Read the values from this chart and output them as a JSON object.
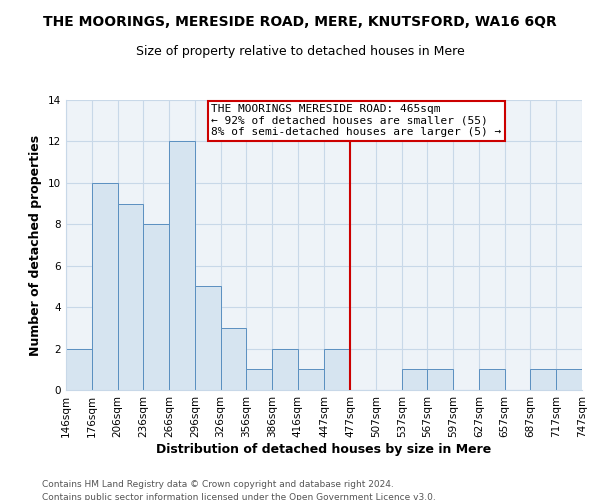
{
  "title": "THE MOORINGS, MERESIDE ROAD, MERE, KNUTSFORD, WA16 6QR",
  "subtitle": "Size of property relative to detached houses in Mere",
  "xlabel": "Distribution of detached houses by size in Mere",
  "ylabel": "Number of detached properties",
  "footer_line1": "Contains HM Land Registry data © Crown copyright and database right 2024.",
  "footer_line2": "Contains public sector information licensed under the Open Government Licence v3.0.",
  "bin_edges": [
    146,
    176,
    206,
    236,
    266,
    296,
    326,
    356,
    386,
    416,
    447,
    477,
    507,
    537,
    567,
    597,
    627,
    657,
    687,
    717,
    747
  ],
  "bin_labels": [
    "146sqm",
    "176sqm",
    "206sqm",
    "236sqm",
    "266sqm",
    "296sqm",
    "326sqm",
    "356sqm",
    "386sqm",
    "416sqm",
    "447sqm",
    "477sqm",
    "507sqm",
    "537sqm",
    "567sqm",
    "597sqm",
    "627sqm",
    "657sqm",
    "687sqm",
    "717sqm",
    "747sqm"
  ],
  "counts": [
    2,
    10,
    9,
    8,
    12,
    5,
    3,
    1,
    2,
    1,
    2,
    0,
    0,
    1,
    1,
    0,
    1,
    0,
    1,
    1
  ],
  "bar_color": "#d6e4f0",
  "bar_edge_color": "#5a8fc0",
  "grid_color": "#c8d8e8",
  "background_color": "#ffffff",
  "plot_bg_color": "#eef3f8",
  "vline_x": 477,
  "vline_color": "#cc0000",
  "annotation_text": "THE MOORINGS MERESIDE ROAD: 465sqm\n← 92% of detached houses are smaller (55)\n8% of semi-detached houses are larger (5) →",
  "annotation_box_color": "#ffffff",
  "annotation_box_edge": "#cc0000",
  "ylim": [
    0,
    14
  ],
  "yticks": [
    0,
    2,
    4,
    6,
    8,
    10,
    12,
    14
  ],
  "title_fontsize": 10,
  "subtitle_fontsize": 9,
  "axis_label_fontsize": 9,
  "tick_fontsize": 7.5,
  "annotation_fontsize": 8,
  "footer_fontsize": 6.5
}
